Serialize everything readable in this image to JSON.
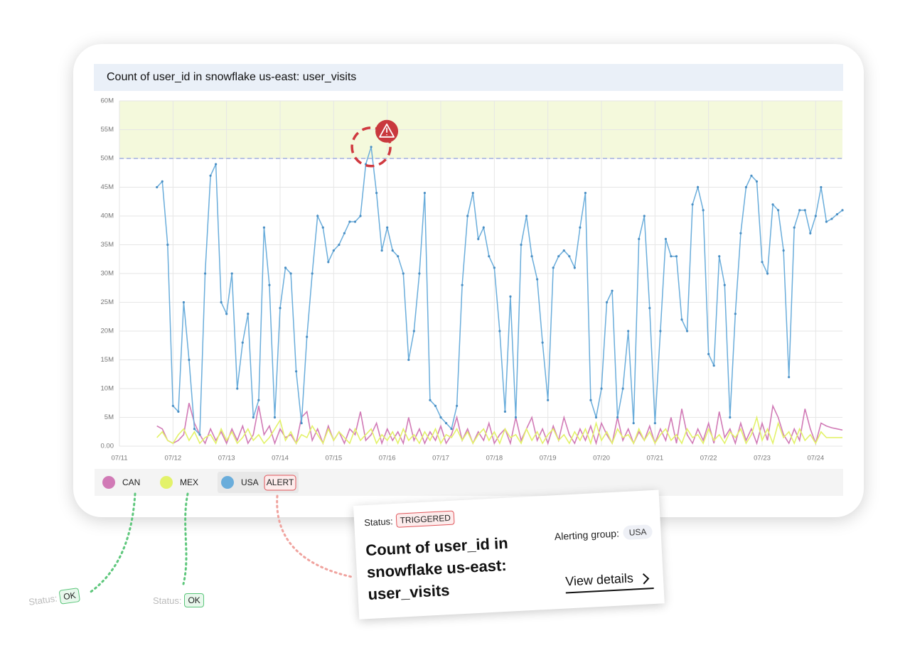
{
  "chart_data": {
    "type": "line",
    "title": "Count of user_id in snowflake us-east: user_visits",
    "x": [
      11.7,
      11.8,
      11.9,
      12.0,
      12.1,
      12.2,
      12.3,
      12.4,
      12.5,
      12.6,
      12.7,
      12.8,
      12.9,
      13.0,
      13.1,
      13.2,
      13.3,
      13.4,
      13.5,
      13.6,
      13.7,
      13.8,
      13.9,
      14.0,
      14.1,
      14.2,
      14.3,
      14.4,
      14.5,
      14.6,
      14.7,
      14.8,
      14.9,
      15.0,
      15.1,
      15.2,
      15.3,
      15.4,
      15.5,
      15.6,
      15.7,
      15.8,
      15.9,
      16.0,
      16.1,
      16.2,
      16.3,
      16.4,
      16.5,
      16.6,
      16.7,
      16.8,
      16.9,
      17.0,
      17.1,
      17.2,
      17.3,
      17.4,
      17.5,
      17.6,
      17.7,
      17.8,
      17.9,
      18.0,
      18.1,
      18.2,
      18.3,
      18.4,
      18.5,
      18.6,
      18.7,
      18.8,
      18.9,
      19.0,
      19.1,
      19.2,
      19.3,
      19.4,
      19.5,
      19.6,
      19.7,
      19.8,
      19.9,
      20.0,
      20.1,
      20.2,
      20.3,
      20.4,
      20.5,
      20.6,
      20.7,
      20.8,
      20.9,
      21.0,
      21.1,
      21.2,
      21.3,
      21.4,
      21.5,
      21.6,
      21.7,
      21.8,
      21.9,
      22.0,
      22.1,
      22.2,
      22.3,
      22.4,
      22.5,
      22.6,
      22.7,
      22.8,
      22.9,
      23.0,
      23.1,
      23.2,
      23.3,
      23.4,
      23.5,
      23.6,
      23.7,
      23.8,
      23.9,
      24.0,
      24.1,
      24.2,
      24.3,
      24.4,
      24.5
    ],
    "series": [
      {
        "name": "CAN",
        "color": "#d17ab6",
        "values": [
          3.5,
          3,
          1,
          0.5,
          1,
          2,
          7.5,
          4,
          2,
          0.5,
          3,
          1,
          2.5,
          0.5,
          3,
          1,
          3.5,
          0.5,
          2,
          7,
          2,
          3.5,
          0.5,
          3,
          1.5,
          2,
          0.5,
          5,
          6,
          1,
          3,
          0.5,
          3.5,
          1,
          2.5,
          0.5,
          3,
          2,
          6,
          1,
          2,
          4,
          0.5,
          3,
          1,
          2.5,
          0.5,
          5,
          1,
          3,
          0.5,
          2.5,
          1,
          3.5,
          0.5,
          2,
          5,
          1,
          3,
          0.5,
          2.5,
          1,
          4,
          0.5,
          2,
          3,
          0.5,
          5,
          1,
          3,
          5,
          1,
          3,
          0.5,
          3.5,
          1,
          5,
          2,
          0.5,
          3,
          1,
          3.5,
          0.5,
          4,
          2,
          0.5,
          5,
          1,
          3,
          0.5,
          2.5,
          1,
          3.5,
          0.5,
          3,
          1,
          5,
          0.5,
          6.5,
          2,
          0.5,
          3,
          1,
          4,
          0.5,
          6,
          1.5,
          3,
          0.5,
          4,
          1,
          3,
          0.5,
          4,
          1,
          7,
          5,
          2,
          0.5,
          3,
          1,
          6.5,
          3,
          0.5,
          4,
          3.5,
          3.2,
          3,
          2.8
        ]
      },
      {
        "name": "MEX",
        "color": "#e3f26a",
        "values": [
          1.5,
          2.5,
          1,
          0.5,
          2,
          3,
          1,
          2.5,
          0.5,
          1.5,
          2,
          0.5,
          3,
          1,
          2.5,
          0.5,
          1.5,
          3,
          1,
          2,
          0.5,
          1.5,
          3,
          4.5,
          1,
          2.5,
          0.5,
          2,
          1.5,
          3.5,
          2,
          0.5,
          3,
          1,
          2.5,
          1.5,
          0.5,
          3,
          1,
          2,
          3,
          0.5,
          2,
          1,
          2.5,
          0.5,
          3,
          1,
          2,
          0.5,
          2.5,
          1,
          3,
          0.5,
          2,
          1.5,
          3,
          1,
          2.5,
          0.5,
          2,
          3,
          1,
          2.5,
          0.5,
          3,
          1.5,
          2,
          0.5,
          3,
          1,
          2.5,
          0.5,
          2,
          3,
          1,
          2,
          0.5,
          2.5,
          1,
          3,
          0.5,
          4,
          1,
          2.5,
          0.5,
          3,
          1.5,
          2,
          0.5,
          3,
          1,
          2.5,
          0.5,
          2,
          3,
          1,
          2,
          0.5,
          3,
          1.5,
          2,
          0.5,
          3,
          1,
          2,
          0.5,
          2.5,
          1.5,
          3,
          0.5,
          2,
          5,
          1,
          3,
          0.5,
          4,
          1.5,
          2.5,
          0.5,
          3,
          1,
          2,
          0.5,
          2.5,
          1.5,
          1.5,
          1.5,
          1.5
        ]
      },
      {
        "name": "USA",
        "color": "#6aaddb",
        "badge": "ALERT",
        "values": [
          45,
          46,
          35,
          7,
          6,
          25,
          15,
          3,
          2,
          30,
          47,
          49,
          25,
          23,
          30,
          10,
          18,
          23,
          5,
          8,
          38,
          28,
          5,
          24,
          31,
          30,
          13,
          4,
          19,
          30,
          40,
          38,
          32,
          34,
          35,
          37,
          39,
          39,
          40,
          49,
          52,
          44,
          34,
          38,
          34,
          33,
          30,
          15,
          20,
          30,
          44,
          8,
          7,
          5,
          4,
          3,
          7,
          28,
          40,
          44,
          36,
          38,
          33,
          31,
          20,
          6,
          26,
          5,
          35,
          40,
          33,
          29,
          18,
          8,
          31,
          33,
          34,
          33,
          31,
          38,
          44,
          8,
          5,
          10,
          25,
          27,
          5,
          10,
          20,
          4,
          36,
          40,
          24,
          4,
          20,
          36,
          33,
          33,
          22,
          20,
          42,
          45,
          41,
          16,
          14,
          33,
          28,
          5,
          23,
          37,
          45,
          47,
          46,
          32,
          30,
          42,
          41,
          34,
          12,
          38,
          41,
          41,
          37,
          40,
          45,
          39,
          39.5,
          40.3,
          41
        ]
      }
    ],
    "xlim": [
      11,
      24.5
    ],
    "xticks": [
      {
        "value": 11,
        "label": "07/11"
      },
      {
        "value": 12,
        "label": "07/12"
      },
      {
        "value": 13,
        "label": "07/13"
      },
      {
        "value": 14,
        "label": "07/14"
      },
      {
        "value": 15,
        "label": "07/15"
      },
      {
        "value": 16,
        "label": "07/16"
      },
      {
        "value": 17,
        "label": "07/17"
      },
      {
        "value": 18,
        "label": "07/18"
      },
      {
        "value": 19,
        "label": "07/19"
      },
      {
        "value": 20,
        "label": "07/20"
      },
      {
        "value": 21,
        "label": "07/21"
      },
      {
        "value": 22,
        "label": "07/22"
      },
      {
        "value": 23,
        "label": "07/23"
      },
      {
        "value": 24,
        "label": "07/24"
      }
    ],
    "ylim": [
      0,
      60
    ],
    "yticks": [
      {
        "value": 0,
        "label": "0.00"
      },
      {
        "value": 5,
        "label": "5M"
      },
      {
        "value": 10,
        "label": "10M"
      },
      {
        "value": 15,
        "label": "15M"
      },
      {
        "value": 20,
        "label": "20M"
      },
      {
        "value": 25,
        "label": "25M"
      },
      {
        "value": 30,
        "label": "30M"
      },
      {
        "value": 35,
        "label": "35M"
      },
      {
        "value": 40,
        "label": "40M"
      },
      {
        "value": 45,
        "label": "45M"
      },
      {
        "value": 50,
        "label": "50M"
      },
      {
        "value": 55,
        "label": "55M"
      },
      {
        "value": 60,
        "label": "60M"
      }
    ],
    "threshold": 50,
    "grid": true
  },
  "statuses": [
    {
      "label": "Status:",
      "value": "OK"
    },
    {
      "label": "Status:",
      "value": "OK"
    }
  ],
  "alert_card": {
    "status_label": "Status:",
    "status": "TRIGGERED",
    "group_label": "Alerting group:",
    "group": "USA",
    "title": "Count of user_id in snowflake us-east: user_visits",
    "link": "View details"
  }
}
